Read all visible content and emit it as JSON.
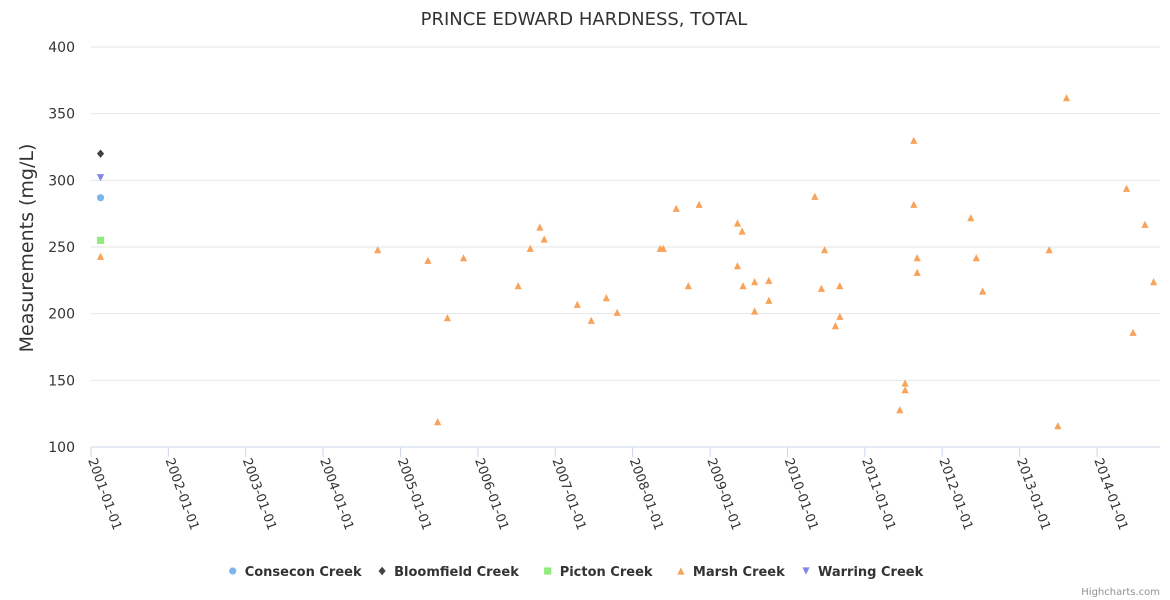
{
  "credits": "Highcharts.com",
  "chart_data": {
    "type": "scatter",
    "title": "PRINCE EDWARD HARDNESS, TOTAL",
    "xlabel": "",
    "ylabel": "Measurements (mg/L)",
    "xlim": [
      "2001-01-01",
      "2014-10-25"
    ],
    "ylim": [
      100,
      400
    ],
    "y_ticks": [
      100,
      150,
      200,
      250,
      300,
      350,
      400
    ],
    "x_ticks": [
      "2001-01-01",
      "2002-01-01",
      "2003-01-01",
      "2004-01-01",
      "2005-01-01",
      "2006-01-01",
      "2007-01-01",
      "2008-01-01",
      "2009-01-01",
      "2010-01-01",
      "2011-01-01",
      "2012-01-01",
      "2013-01-01",
      "2014-01-01"
    ],
    "grid": true,
    "legend_position": "bottom-center",
    "series": [
      {
        "name": "Consecon Creek",
        "marker": "circle",
        "color": "#7cb5ec",
        "points": [
          [
            "2001-02-15",
            287
          ]
        ]
      },
      {
        "name": "Bloomfield Creek",
        "marker": "diamond",
        "color": "#434348",
        "points": [
          [
            "2001-02-15",
            320
          ]
        ]
      },
      {
        "name": "Picton Creek",
        "marker": "square",
        "color": "#90ed7d",
        "points": [
          [
            "2001-02-15",
            255
          ]
        ]
      },
      {
        "name": "Marsh Creek",
        "marker": "triangle",
        "color": "#f7a35c",
        "points": [
          [
            "2001-02-15",
            243
          ],
          [
            "2004-09-15",
            248
          ],
          [
            "2005-05-10",
            240
          ],
          [
            "2005-06-25",
            119
          ],
          [
            "2005-08-10",
            197
          ],
          [
            "2005-10-25",
            242
          ],
          [
            "2006-07-10",
            221
          ],
          [
            "2006-09-05",
            249
          ],
          [
            "2006-10-20",
            265
          ],
          [
            "2006-11-10",
            256
          ],
          [
            "2007-04-15",
            207
          ],
          [
            "2007-06-20",
            195
          ],
          [
            "2007-08-30",
            212
          ],
          [
            "2007-10-20",
            201
          ],
          [
            "2008-05-10",
            249
          ],
          [
            "2008-05-25",
            249
          ],
          [
            "2008-07-25",
            279
          ],
          [
            "2008-09-20",
            221
          ],
          [
            "2008-11-10",
            282
          ],
          [
            "2009-05-10",
            268
          ],
          [
            "2009-05-10",
            236
          ],
          [
            "2009-06-01",
            262
          ],
          [
            "2009-06-05",
            221
          ],
          [
            "2009-07-30",
            224
          ],
          [
            "2009-07-30",
            202
          ],
          [
            "2009-10-05",
            225
          ],
          [
            "2009-10-05",
            210
          ],
          [
            "2010-05-10",
            288
          ],
          [
            "2010-06-10",
            219
          ],
          [
            "2010-06-25",
            248
          ],
          [
            "2010-08-15",
            191
          ],
          [
            "2010-09-05",
            198
          ],
          [
            "2010-09-05",
            221
          ],
          [
            "2011-06-15",
            128
          ],
          [
            "2011-07-10",
            148
          ],
          [
            "2011-07-10",
            143
          ],
          [
            "2011-08-20",
            330
          ],
          [
            "2011-08-20",
            282
          ],
          [
            "2011-09-05",
            242
          ],
          [
            "2011-09-05",
            231
          ],
          [
            "2012-05-15",
            272
          ],
          [
            "2012-06-10",
            242
          ],
          [
            "2012-07-10",
            217
          ],
          [
            "2013-05-20",
            248
          ],
          [
            "2013-06-30",
            116
          ],
          [
            "2013-08-10",
            362
          ],
          [
            "2014-05-20",
            294
          ],
          [
            "2014-06-20",
            186
          ],
          [
            "2014-08-15",
            267
          ],
          [
            "2014-09-25",
            224
          ]
        ]
      },
      {
        "name": "Warring Creek",
        "marker": "triangle-down",
        "color": "#8085e9",
        "points": [
          [
            "2001-02-15",
            302
          ]
        ]
      }
    ]
  }
}
